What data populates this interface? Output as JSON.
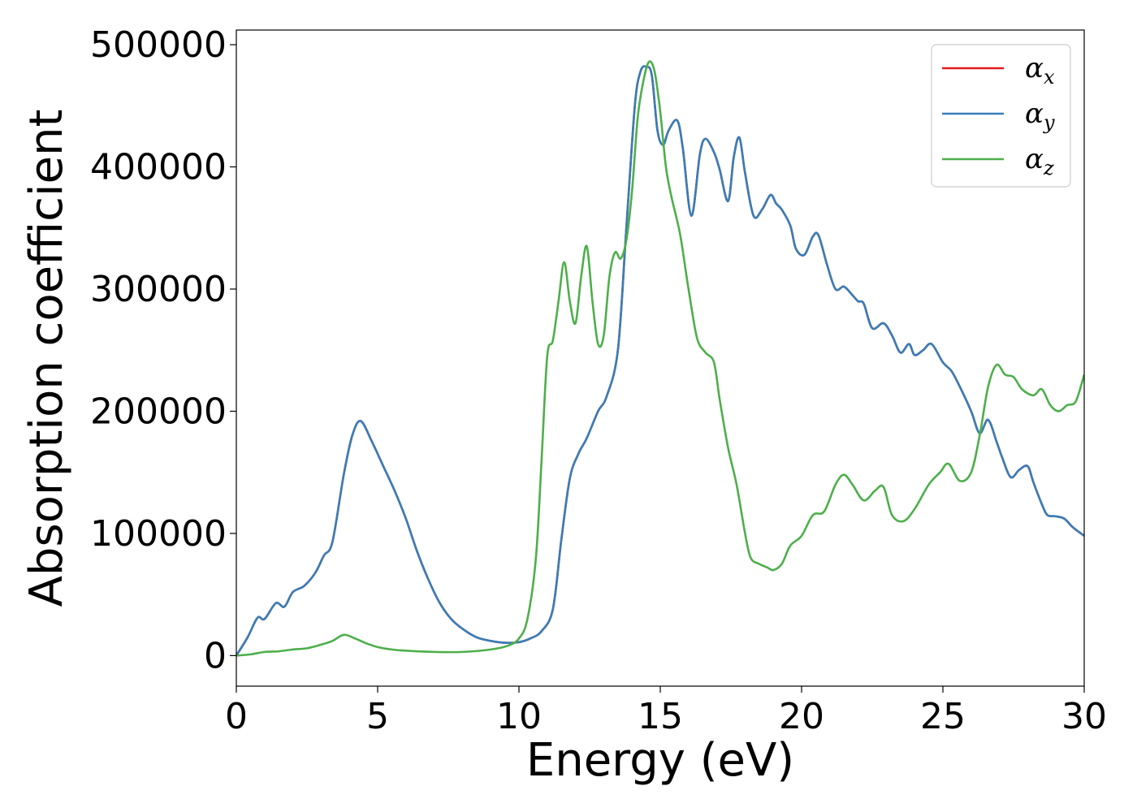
{
  "chart_data": {
    "type": "line",
    "title": "",
    "xlabel": "Energy (eV)",
    "ylabel": "Absorption coefficient",
    "xlim": [
      0,
      30
    ],
    "ylim": [
      -25000,
      512000
    ],
    "xticks": [
      0,
      5,
      10,
      15,
      20,
      25,
      30
    ],
    "xtick_labels": [
      "0",
      "5",
      "10",
      "15",
      "20",
      "25",
      "30"
    ],
    "yticks": [
      0,
      100000,
      200000,
      300000,
      400000,
      500000
    ],
    "ytick_labels": [
      "0",
      "100000",
      "200000",
      "300000",
      "400000",
      "500000"
    ],
    "grid": false,
    "legend_position": "top-right",
    "legend": [
      {
        "symbol": "α",
        "sub": "x"
      },
      {
        "symbol": "α",
        "sub": "y"
      },
      {
        "symbol": "α",
        "sub": "z"
      }
    ],
    "series": [
      {
        "key": "alpha_x",
        "color": "#e41a1c",
        "x": [
          0,
          0.4,
          0.75,
          1.0,
          1.4,
          1.7,
          2.0,
          2.4,
          2.8,
          3.1,
          3.4,
          3.8,
          4.1,
          4.4,
          4.8,
          5.2,
          5.6,
          6.0,
          6.4,
          6.8,
          7.2,
          7.6,
          8.0,
          8.5,
          9.0,
          9.5,
          10.0,
          10.4,
          10.8,
          11.2,
          11.5,
          11.8,
          12.1,
          12.4,
          12.8,
          13.1,
          13.5,
          13.8,
          14.1,
          14.3,
          14.5,
          14.7,
          14.9,
          15.1,
          15.3,
          15.6,
          15.8,
          16.1,
          16.4,
          16.6,
          16.9,
          17.1,
          17.4,
          17.6,
          17.8,
          18.0,
          18.3,
          18.6,
          18.9,
          19.1,
          19.3,
          19.6,
          19.8,
          20.1,
          20.4,
          20.6,
          20.9,
          21.2,
          21.5,
          21.8,
          22.0,
          22.2,
          22.5,
          22.9,
          23.2,
          23.5,
          23.8,
          24.0,
          24.3,
          24.6,
          25.0,
          25.3,
          25.6,
          26.0,
          26.3,
          26.6,
          26.9,
          27.1,
          27.4,
          27.7,
          28.0,
          28.2,
          28.5,
          28.7,
          29.0,
          29.3,
          29.6,
          30.0
        ],
        "y": [
          0,
          15000,
          31000,
          30000,
          43000,
          40000,
          52000,
          57000,
          68000,
          82000,
          93000,
          148000,
          180000,
          192000,
          175000,
          155000,
          135000,
          112000,
          85000,
          62000,
          43000,
          30000,
          22000,
          15000,
          12000,
          10500,
          11000,
          14000,
          20000,
          38000,
          95000,
          145000,
          165000,
          178000,
          200000,
          212000,
          250000,
          350000,
          450000,
          478000,
          482000,
          475000,
          430000,
          418000,
          430000,
          438000,
          415000,
          360000,
          410000,
          423000,
          412000,
          398000,
          372000,
          408000,
          424000,
          395000,
          360000,
          365000,
          377000,
          370000,
          365000,
          352000,
          333000,
          328000,
          343000,
          344000,
          320000,
          300000,
          302000,
          295000,
          290000,
          288000,
          268000,
          272000,
          262000,
          248000,
          255000,
          246000,
          250000,
          255000,
          240000,
          233000,
          220000,
          200000,
          182000,
          193000,
          175000,
          162000,
          146000,
          152000,
          155000,
          142000,
          124000,
          115000,
          114000,
          112000,
          105000,
          98000
        ]
      },
      {
        "key": "alpha_y",
        "color": "#377eb8",
        "x": [
          0,
          0.4,
          0.75,
          1.0,
          1.4,
          1.7,
          2.0,
          2.4,
          2.8,
          3.1,
          3.4,
          3.8,
          4.1,
          4.4,
          4.8,
          5.2,
          5.6,
          6.0,
          6.4,
          6.8,
          7.2,
          7.6,
          8.0,
          8.5,
          9.0,
          9.5,
          10.0,
          10.4,
          10.8,
          11.2,
          11.5,
          11.8,
          12.1,
          12.4,
          12.8,
          13.1,
          13.5,
          13.8,
          14.1,
          14.3,
          14.5,
          14.7,
          14.9,
          15.1,
          15.3,
          15.6,
          15.8,
          16.1,
          16.4,
          16.6,
          16.9,
          17.1,
          17.4,
          17.6,
          17.8,
          18.0,
          18.3,
          18.6,
          18.9,
          19.1,
          19.3,
          19.6,
          19.8,
          20.1,
          20.4,
          20.6,
          20.9,
          21.2,
          21.5,
          21.8,
          22.0,
          22.2,
          22.5,
          22.9,
          23.2,
          23.5,
          23.8,
          24.0,
          24.3,
          24.6,
          25.0,
          25.3,
          25.6,
          26.0,
          26.3,
          26.6,
          26.9,
          27.1,
          27.4,
          27.7,
          28.0,
          28.2,
          28.5,
          28.7,
          29.0,
          29.3,
          29.6,
          30.0
        ],
        "y": [
          0,
          15000,
          31000,
          30000,
          43000,
          40000,
          52000,
          57000,
          68000,
          82000,
          93000,
          148000,
          180000,
          192000,
          175000,
          155000,
          135000,
          112000,
          85000,
          62000,
          43000,
          30000,
          22000,
          15000,
          12000,
          10500,
          11000,
          14000,
          20000,
          38000,
          95000,
          145000,
          165000,
          178000,
          200000,
          212000,
          250000,
          350000,
          450000,
          478000,
          482000,
          475000,
          430000,
          418000,
          430000,
          438000,
          415000,
          360000,
          410000,
          423000,
          412000,
          398000,
          372000,
          408000,
          424000,
          395000,
          360000,
          365000,
          377000,
          370000,
          365000,
          352000,
          333000,
          328000,
          343000,
          344000,
          320000,
          300000,
          302000,
          295000,
          290000,
          288000,
          268000,
          272000,
          262000,
          248000,
          255000,
          246000,
          250000,
          255000,
          240000,
          233000,
          220000,
          200000,
          182000,
          193000,
          175000,
          162000,
          146000,
          152000,
          155000,
          142000,
          124000,
          115000,
          114000,
          112000,
          105000,
          98000
        ]
      },
      {
        "key": "alpha_z",
        "color": "#4daf4a",
        "x": [
          0,
          0.5,
          1.0,
          1.5,
          2.0,
          2.5,
          3.0,
          3.4,
          3.8,
          4.2,
          4.6,
          5.0,
          5.5,
          6.0,
          7.0,
          8.0,
          9.0,
          9.6,
          10.0,
          10.3,
          10.6,
          10.8,
          11.0,
          11.2,
          11.4,
          11.6,
          11.8,
          12.0,
          12.2,
          12.4,
          12.6,
          12.8,
          13.0,
          13.2,
          13.4,
          13.6,
          13.8,
          14.0,
          14.2,
          14.4,
          14.6,
          14.8,
          15.0,
          15.2,
          15.4,
          15.7,
          16.0,
          16.3,
          16.6,
          16.9,
          17.1,
          17.4,
          17.7,
          18.0,
          18.2,
          18.5,
          18.8,
          19.0,
          19.3,
          19.6,
          20.0,
          20.4,
          20.8,
          21.2,
          21.5,
          21.8,
          22.2,
          22.6,
          22.9,
          23.2,
          23.6,
          24.0,
          24.5,
          24.9,
          25.2,
          25.6,
          26.0,
          26.3,
          26.6,
          26.9,
          27.2,
          27.5,
          27.8,
          28.2,
          28.5,
          28.8,
          29.1,
          29.4,
          29.7,
          30.0
        ],
        "y": [
          0,
          1000,
          3000,
          3500,
          5000,
          6000,
          9000,
          12000,
          17000,
          14000,
          10000,
          7000,
          5000,
          4000,
          3000,
          3000,
          5000,
          8000,
          14000,
          30000,
          80000,
          160000,
          245000,
          258000,
          290000,
          322000,
          290000,
          272000,
          310000,
          335000,
          290000,
          255000,
          262000,
          310000,
          330000,
          325000,
          340000,
          380000,
          440000,
          470000,
          486000,
          478000,
          445000,
          400000,
          375000,
          345000,
          300000,
          260000,
          248000,
          240000,
          210000,
          170000,
          140000,
          100000,
          80000,
          75000,
          72000,
          70000,
          75000,
          90000,
          98000,
          115000,
          118000,
          140000,
          148000,
          140000,
          127000,
          135000,
          138000,
          115000,
          110000,
          120000,
          140000,
          150000,
          157000,
          143000,
          150000,
          180000,
          220000,
          238000,
          230000,
          228000,
          218000,
          213000,
          218000,
          205000,
          200000,
          205000,
          208000,
          230000
        ]
      }
    ]
  }
}
